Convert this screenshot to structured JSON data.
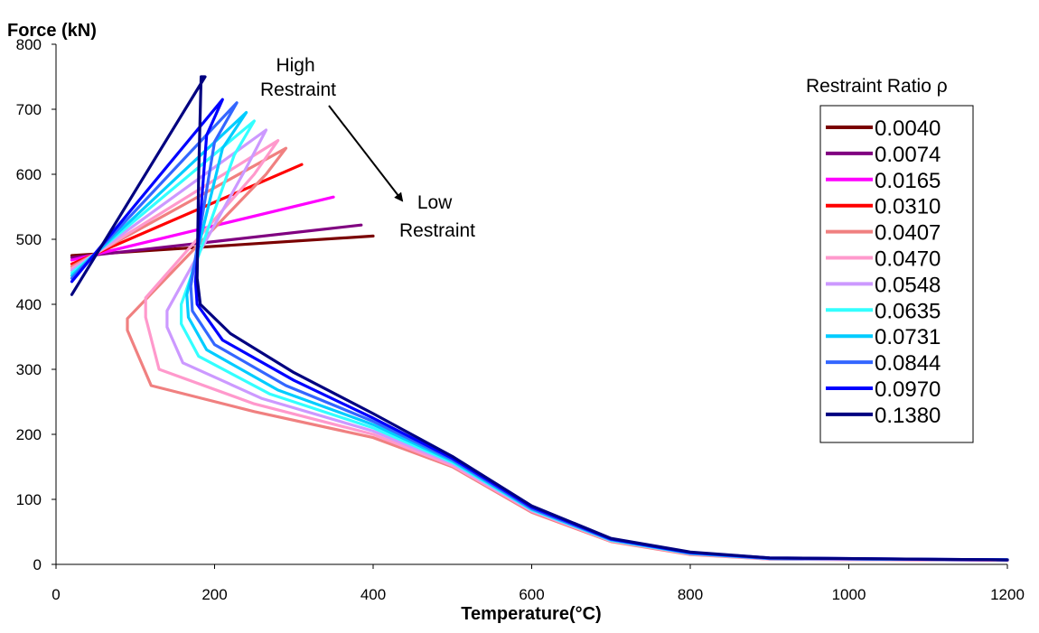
{
  "chart_data": {
    "type": "line",
    "ylabel": "Force (kN)",
    "xlabel": "Temperature(°C)",
    "xlim": [
      0,
      1200
    ],
    "ylim": [
      0,
      800
    ],
    "xticks": [
      0,
      200,
      400,
      600,
      800,
      1000,
      1200
    ],
    "yticks": [
      0,
      100,
      200,
      300,
      400,
      500,
      600,
      700,
      800
    ],
    "grid": false,
    "legend": {
      "title": "Restraint Ratio ρ",
      "position": "right"
    },
    "annotations": [
      {
        "text": [
          "High",
          "Restraint"
        ]
      },
      {
        "text": [
          "Low",
          "Restraint"
        ]
      }
    ],
    "series": [
      {
        "name": "0.0040",
        "color": "#7a0000",
        "points": [
          [
            20,
            475
          ],
          [
            400,
            505
          ]
        ]
      },
      {
        "name": "0.0074",
        "color": "#800080",
        "points": [
          [
            20,
            472
          ],
          [
            385,
            522
          ]
        ]
      },
      {
        "name": "0.0165",
        "color": "#ff00ff",
        "points": [
          [
            20,
            468
          ],
          [
            350,
            565
          ]
        ]
      },
      {
        "name": "0.0310",
        "color": "#ff0000",
        "points": [
          [
            20,
            462
          ],
          [
            310,
            615
          ]
        ]
      },
      {
        "name": "0.0407",
        "color": "#f08080",
        "points": [
          [
            20,
            458
          ],
          [
            290,
            640
          ],
          [
            265,
            600
          ],
          [
            90,
            378
          ],
          [
            90,
            360
          ],
          [
            120,
            275
          ],
          [
            250,
            235
          ],
          [
            400,
            195
          ],
          [
            500,
            150
          ],
          [
            600,
            80
          ],
          [
            700,
            35
          ],
          [
            800,
            15
          ],
          [
            900,
            8
          ],
          [
            1200,
            6
          ]
        ]
      },
      {
        "name": "0.0470",
        "color": "#ff99cc",
        "points": [
          [
            20,
            455
          ],
          [
            280,
            652
          ],
          [
            250,
            600
          ],
          [
            113,
            410
          ],
          [
            113,
            380
          ],
          [
            130,
            300
          ],
          [
            250,
            247
          ],
          [
            400,
            200
          ],
          [
            500,
            152
          ],
          [
            600,
            82
          ],
          [
            700,
            36
          ],
          [
            800,
            16
          ],
          [
            900,
            8
          ],
          [
            1200,
            6
          ]
        ]
      },
      {
        "name": "0.0548",
        "color": "#cc99ff",
        "points": [
          [
            20,
            452
          ],
          [
            265,
            668
          ],
          [
            240,
            610
          ],
          [
            140,
            390
          ],
          [
            140,
            365
          ],
          [
            160,
            310
          ],
          [
            260,
            255
          ],
          [
            400,
            205
          ],
          [
            500,
            155
          ],
          [
            600,
            83
          ],
          [
            700,
            37
          ],
          [
            800,
            17
          ],
          [
            900,
            9
          ],
          [
            1200,
            7
          ]
        ]
      },
      {
        "name": "0.0635",
        "color": "#33ffff",
        "points": [
          [
            20,
            448
          ],
          [
            250,
            682
          ],
          [
            225,
            630
          ],
          [
            158,
            400
          ],
          [
            158,
            370
          ],
          [
            180,
            320
          ],
          [
            270,
            262
          ],
          [
            400,
            210
          ],
          [
            500,
            157
          ],
          [
            600,
            84
          ],
          [
            700,
            37
          ],
          [
            800,
            17
          ],
          [
            900,
            9
          ],
          [
            1200,
            7
          ]
        ]
      },
      {
        "name": "0.0731",
        "color": "#00ccff",
        "points": [
          [
            20,
            444
          ],
          [
            240,
            695
          ],
          [
            210,
            640
          ],
          [
            165,
            415
          ],
          [
            167,
            380
          ],
          [
            190,
            330
          ],
          [
            280,
            268
          ],
          [
            400,
            215
          ],
          [
            500,
            159
          ],
          [
            600,
            85
          ],
          [
            700,
            38
          ],
          [
            800,
            17
          ],
          [
            900,
            9
          ],
          [
            1200,
            7
          ]
        ]
      },
      {
        "name": "0.0844",
        "color": "#3366ff",
        "points": [
          [
            20,
            440
          ],
          [
            228,
            710
          ],
          [
            200,
            650
          ],
          [
            170,
            428
          ],
          [
            172,
            390
          ],
          [
            200,
            338
          ],
          [
            290,
            275
          ],
          [
            400,
            220
          ],
          [
            500,
            161
          ],
          [
            600,
            86
          ],
          [
            700,
            38
          ],
          [
            800,
            18
          ],
          [
            900,
            9
          ],
          [
            1200,
            7
          ]
        ]
      },
      {
        "name": "0.0970",
        "color": "#0000ff",
        "points": [
          [
            20,
            435
          ],
          [
            210,
            715
          ],
          [
            190,
            660
          ],
          [
            176,
            435
          ],
          [
            178,
            400
          ],
          [
            210,
            345
          ],
          [
            300,
            283
          ],
          [
            400,
            225
          ],
          [
            500,
            163
          ],
          [
            600,
            88
          ],
          [
            700,
            39
          ],
          [
            800,
            18
          ],
          [
            900,
            10
          ],
          [
            1200,
            7
          ]
        ]
      },
      {
        "name": "0.1380",
        "color": "#000080",
        "points": [
          [
            20,
            415
          ],
          [
            188,
            750
          ],
          [
            183,
            750
          ],
          [
            180,
            600
          ],
          [
            178,
            440
          ],
          [
            182,
            400
          ],
          [
            220,
            355
          ],
          [
            300,
            295
          ],
          [
            400,
            232
          ],
          [
            500,
            166
          ],
          [
            600,
            90
          ],
          [
            700,
            40
          ],
          [
            800,
            19
          ],
          [
            900,
            10
          ],
          [
            1200,
            7
          ]
        ]
      }
    ]
  }
}
